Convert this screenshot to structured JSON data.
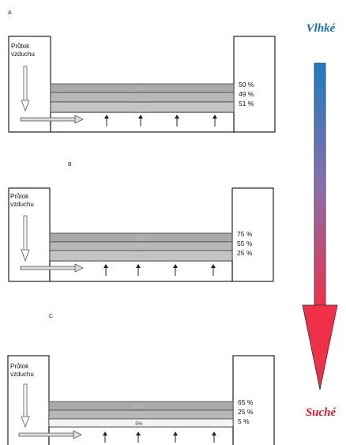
{
  "gradient": {
    "top_label": "Vlhké",
    "bottom_label": "Suché",
    "top_color": "#1a6fc0",
    "bottom_color": "#e0182f"
  },
  "panels": [
    {
      "letter": "A",
      "airflow_line1": "Průtok",
      "airflow_line2": "vzduchu",
      "bands": [
        {
          "band_label": "50%",
          "value": "50 %"
        },
        {
          "band_label": "49%",
          "value": "49 %"
        },
        {
          "band_label": "51%",
          "value": "51 %"
        }
      ]
    },
    {
      "letter": "B",
      "airflow_line1": "Průtok",
      "airflow_line2": "vzduchu",
      "bands": [
        {
          "band_label": "75%",
          "value": "75 %"
        },
        {
          "band_label": "55%",
          "value": "55 %"
        },
        {
          "band_label": "25%",
          "value": "25 %"
        }
      ]
    },
    {
      "letter": "C",
      "airflow_line1": "Průtok",
      "airflow_line2": "vzduchu",
      "bands": [
        {
          "band_label": "65%",
          "value": "65 %"
        },
        {
          "band_label": "25%",
          "value": "25 %"
        },
        {
          "band_label": "5%",
          "value": "5 %"
        }
      ]
    }
  ]
}
